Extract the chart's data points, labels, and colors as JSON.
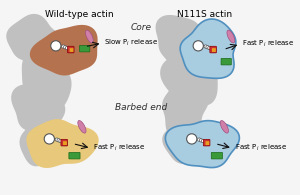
{
  "title_left": "Wild-type actin",
  "title_right": "N111S actin",
  "label_core": "Core",
  "label_barbed": "Barbed end",
  "bg_color": "#f5f5f5",
  "gray_blob_color": "#c0c0c0",
  "wt_core_color": "#b5724e",
  "wt_barbed_color": "#e8c87a",
  "n111s_color": "#a8cce0",
  "n111s_outline_color": "#5090c0",
  "nucleotide_red": "#cc3030",
  "nucleotide_orange": "#e8a020",
  "green_color": "#3a9a3a",
  "pink_color": "#d080a8",
  "arrow_color": "#111111",
  "wt_core_label": "Slow P$_i$ release",
  "wt_barbed_label": "Fast P$_i$ release",
  "n111s_core_label": "Fast P$_i$ release",
  "n111s_barbed_label": "Fast P$_i$ release",
  "title_fontsize": 6.5,
  "label_fontsize": 6.5,
  "annot_fontsize": 5.0
}
